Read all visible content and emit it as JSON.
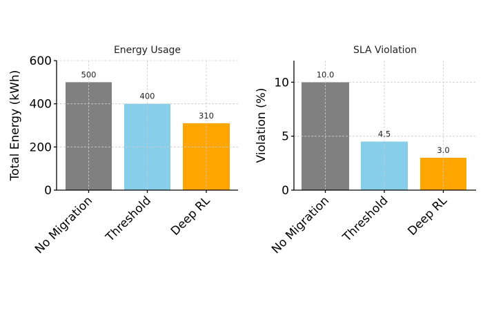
{
  "chart_data": [
    {
      "type": "bar",
      "title": "Energy Usage",
      "xlabel": "",
      "ylabel": "Total Energy (kWh)",
      "categories": [
        "No Migration",
        "Threshold",
        "Deep RL"
      ],
      "values": [
        500,
        400,
        310
      ],
      "data_labels": [
        "500",
        "400",
        "310"
      ],
      "colors": [
        "#808080",
        "#87ceeb",
        "#ffa500"
      ],
      "ylim": [
        0,
        600
      ],
      "yticks": [
        0,
        200,
        400,
        600
      ],
      "ytick_labels": [
        "0",
        "200",
        "400",
        "600"
      ],
      "grid": true
    },
    {
      "type": "bar",
      "title": "SLA Violation",
      "xlabel": "",
      "ylabel": "Violation (%)",
      "categories": [
        "No Migration",
        "Threshold",
        "Deep RL"
      ],
      "values": [
        10.0,
        4.5,
        3.0
      ],
      "data_labels": [
        "10.0",
        "4.5",
        "3.0"
      ],
      "colors": [
        "#808080",
        "#87ceeb",
        "#ffa500"
      ],
      "ylim": [
        0,
        12
      ],
      "yticks": [
        0,
        5,
        10
      ],
      "ytick_labels": [
        "0",
        "5",
        "10"
      ],
      "grid": true
    }
  ]
}
